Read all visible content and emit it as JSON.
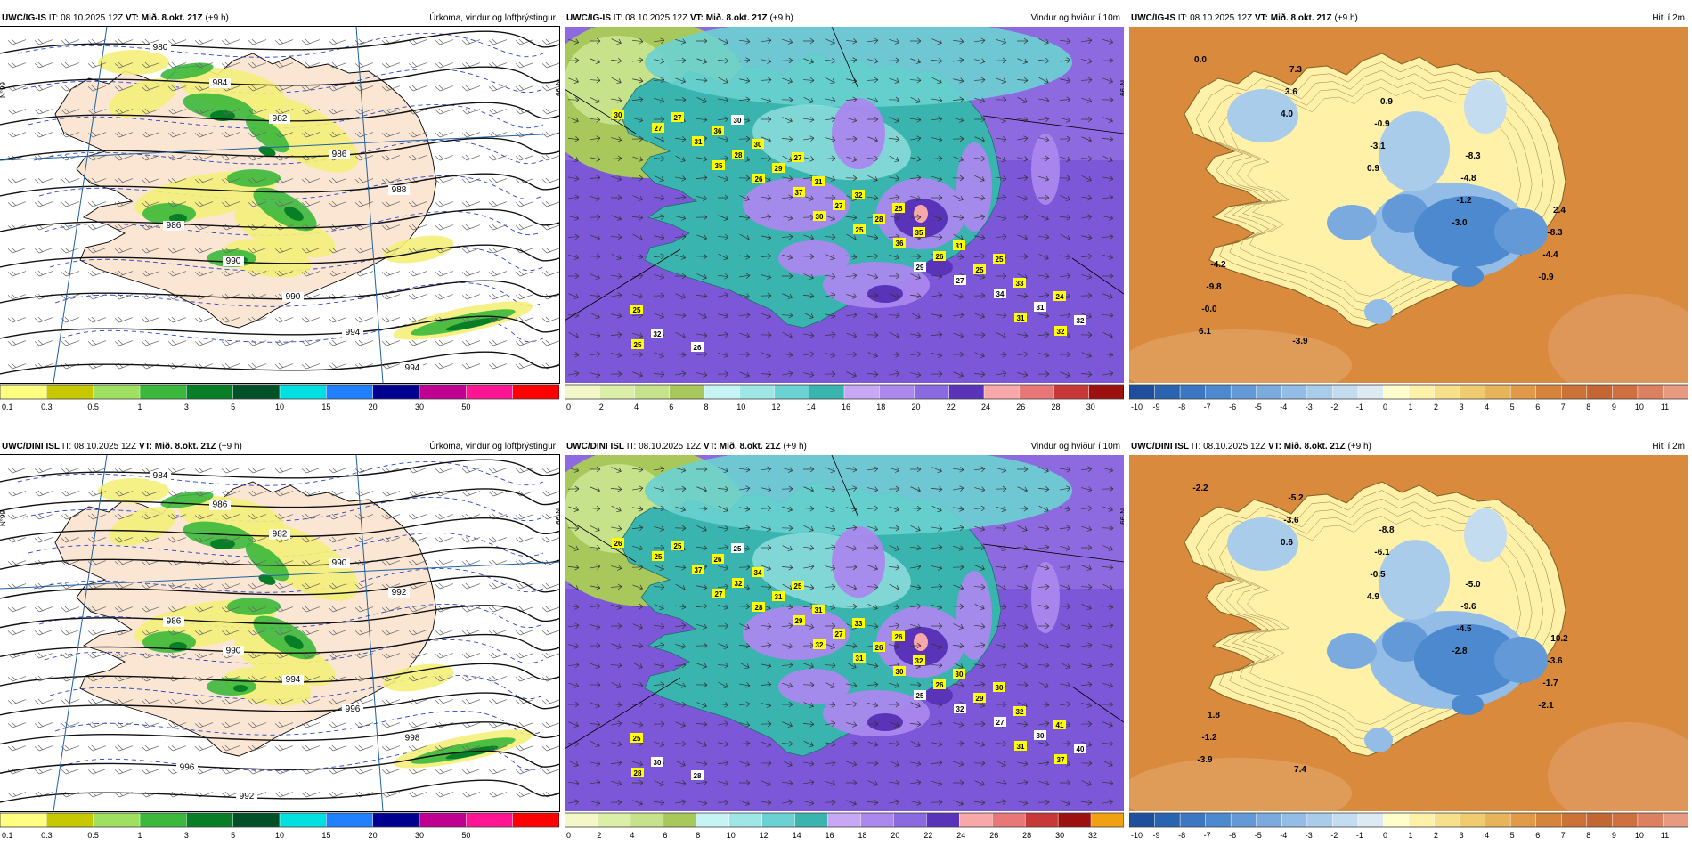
{
  "panels": [
    {
      "id": "p1",
      "row": 0,
      "col": 0,
      "kind": "precip",
      "model": "UWC/IG-IS",
      "it_label": "IT:",
      "it": "08.10.2025 12Z",
      "vt_label": "VT:",
      "vt": "Mið. 8.okt. 21Z",
      "lead": "(+9 h)",
      "product": "Úrkoma, vindur og loftþrýstingur",
      "isobars": [
        "980",
        "984",
        "982",
        "986",
        "988",
        "986",
        "990",
        "990",
        "994",
        "994"
      ],
      "lat_label": "N°99"
    },
    {
      "id": "p2",
      "row": 0,
      "col": 1,
      "kind": "wind",
      "model": "UWC/IG-IS",
      "it_label": "IT:",
      "it": "08.10.2025 12Z",
      "vt_label": "VT:",
      "vt": "Mið. 8.okt. 21Z",
      "lead": "(+9 h)",
      "product": "Vindur og hviður í 10m",
      "gusts": [
        "30",
        "35",
        "30",
        "29",
        "31",
        "27",
        "26",
        "25",
        "27",
        "32",
        "31",
        "37",
        "36",
        "34",
        "25",
        "28",
        "27",
        "26",
        "31",
        "27",
        "29",
        "28",
        "25",
        "32",
        "36",
        "31",
        "35",
        "33",
        "32",
        "30",
        "32",
        "31",
        "24",
        "26",
        "27",
        "25",
        "25",
        "25",
        "30"
      ],
      "lat_label": "N°99"
    },
    {
      "id": "p3",
      "row": 0,
      "col": 2,
      "kind": "temp",
      "model": "UWC/IG-IS",
      "it_label": "IT:",
      "it": "08.10.2025 12Z",
      "vt_label": "VT:",
      "vt": "Mið. 8.okt. 21Z",
      "lead": "(+9 h)",
      "product": "Hiti í 2m",
      "temps": [
        "0.0",
        "4.0",
        "0.9",
        "-3.0",
        "-0.9",
        "6.1",
        "3.6",
        "-3.1",
        "-1.2",
        "-4.4",
        "-0.0",
        "7.3",
        "-0.9",
        "-4.8",
        "-8.3",
        "-9.8",
        "-3.9",
        "0.9",
        "-8.3",
        "2.4",
        "-4.2"
      ]
    },
    {
      "id": "p4",
      "row": 1,
      "col": 0,
      "kind": "precip",
      "model": "UWC/DINI ISL",
      "it_label": "IT:",
      "it": "08.10.2025 12Z",
      "vt_label": "VT:",
      "vt": "Mið. 8.okt. 21Z",
      "lead": "(+9 h)",
      "product": "Úrkoma, vindur og loftþrýstingur",
      "isobars": [
        "984",
        "986",
        "982",
        "990",
        "992",
        "986",
        "990",
        "994",
        "996",
        "998",
        "996",
        "992"
      ],
      "lat_label": "N°99"
    },
    {
      "id": "p5",
      "row": 1,
      "col": 1,
      "kind": "wind",
      "model": "UWC/DINI ISL",
      "it_label": "IT:",
      "it": "08.10.2025 12Z",
      "vt_label": "VT:",
      "vt": "Mið. 8.okt. 21Z",
      "lead": "(+9 h)",
      "product": "Vindur og hviður í 10m",
      "gusts": [
        "26",
        "27",
        "32",
        "25",
        "31",
        "25",
        "28",
        "31",
        "32",
        "37",
        "37",
        "29",
        "30",
        "27",
        "28",
        "32",
        "27",
        "26",
        "30",
        "25",
        "31",
        "26",
        "29",
        "40",
        "26",
        "31",
        "32",
        "32",
        "30",
        "34",
        "33",
        "30",
        "41",
        "28",
        "25",
        "26",
        "30",
        "25",
        "25"
      ],
      "lat_label": "N°99"
    },
    {
      "id": "p6",
      "row": 1,
      "col": 2,
      "kind": "temp",
      "model": "UWC/DINI ISL",
      "it_label": "IT:",
      "it": "08.10.2025 12Z",
      "vt_label": "VT:",
      "vt": "Mið. 8.okt. 21Z",
      "lead": "(+9 h)",
      "product": "Hiti í 2m",
      "temps": [
        "-2.2",
        "0.6",
        "4.9",
        "-2.8",
        "-2.1",
        "-3.9",
        "-3.6",
        "-0.5",
        "-4.5",
        "-1.7",
        "-1.2",
        "-5.2",
        "-6.1",
        "-9.6",
        "-3.6",
        "1.8",
        "7.4",
        "-8.8",
        "-5.0",
        "10.2"
      ]
    }
  ],
  "legends": {
    "precip": {
      "ticks": [
        "0.1",
        "0.3",
        "0.5",
        "1",
        "3",
        "5",
        "10",
        "15",
        "20",
        "30",
        "50"
      ],
      "colors": [
        "#ffff80",
        "#c8c800",
        "#a0e060",
        "#3cb83c",
        "#087f26",
        "#005028",
        "#00e0e0",
        "#2080ff",
        "#000090",
        "#c00090",
        "#ff1493",
        "#ff0000"
      ]
    },
    "wind_top": {
      "ticks": [
        "0",
        "2",
        "4",
        "6",
        "8",
        "10",
        "12",
        "14",
        "16",
        "18",
        "20",
        "22",
        "24",
        "26",
        "28",
        "30"
      ],
      "colors": [
        "#f4f8c8",
        "#dcefa8",
        "#c6e28a",
        "#a8c85c",
        "#c6f4f4",
        "#9fe6e6",
        "#6ad2d2",
        "#3ab4ae",
        "#c8a8f4",
        "#aa88ee",
        "#8a6ae0",
        "#5a34b8",
        "#f8a8a8",
        "#e87878",
        "#c83838",
        "#9c1010"
      ]
    },
    "wind_bottom": {
      "ticks": [
        "0",
        "2",
        "4",
        "6",
        "8",
        "10",
        "12",
        "14",
        "16",
        "18",
        "20",
        "22",
        "24",
        "26",
        "28",
        "30",
        "32"
      ],
      "colors": [
        "#f4f8c8",
        "#dcefa8",
        "#c6e28a",
        "#a8c85c",
        "#c6f4f4",
        "#9fe6e6",
        "#6ad2d2",
        "#3ab4ae",
        "#c8a8f4",
        "#aa88ee",
        "#8a6ae0",
        "#5a34b8",
        "#f8a8a8",
        "#e87878",
        "#c83838",
        "#9c1010",
        "#f0a010"
      ]
    },
    "temp": {
      "ticks": [
        "-10",
        "-9",
        "-8",
        "-7",
        "-6",
        "-5",
        "-4",
        "-3",
        "-2",
        "-1",
        "0",
        "1",
        "2",
        "3",
        "4",
        "5",
        "6",
        "7",
        "8",
        "9",
        "10",
        "11"
      ],
      "colors": [
        "#1e4f9c",
        "#2a63b0",
        "#3b77c2",
        "#4d89cf",
        "#6399d6",
        "#7aaade",
        "#93bde6",
        "#aacceb",
        "#c4dcf0",
        "#dceaf2",
        "#ffffcc",
        "#fff2a8",
        "#f8e08a",
        "#f0cc70",
        "#e8b45a",
        "#e09a48",
        "#d6843c",
        "#cc7236",
        "#c46634",
        "#d07040",
        "#dc8060",
        "#e89a80"
      ]
    }
  }
}
